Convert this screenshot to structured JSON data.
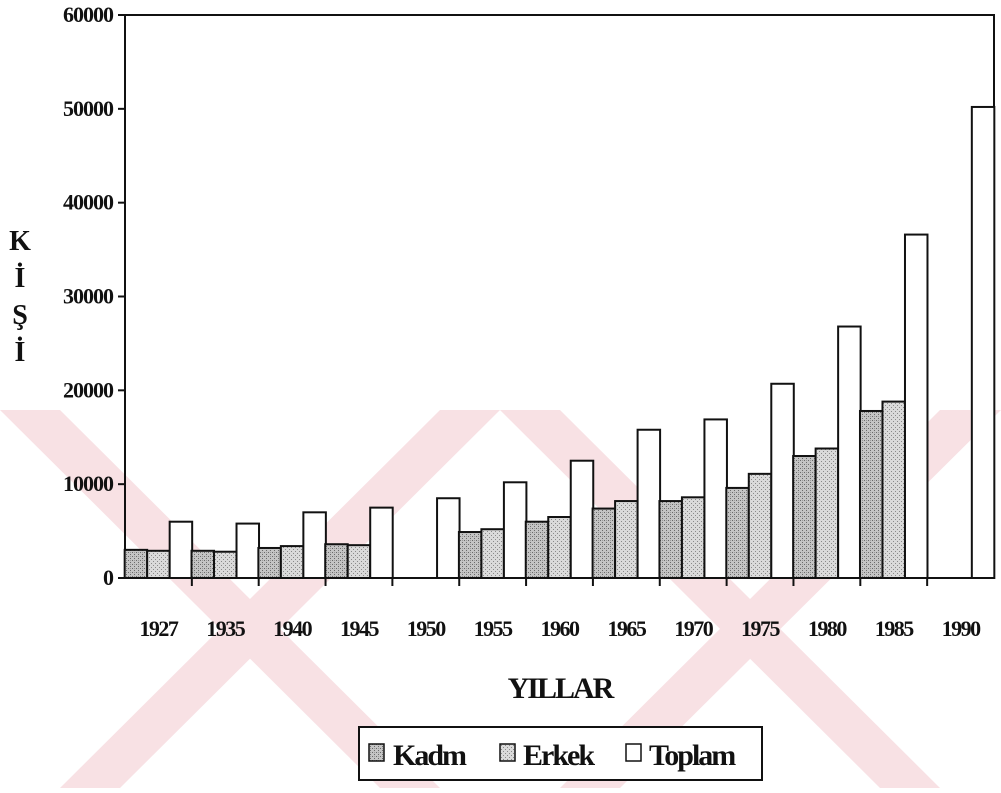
{
  "chart_data": {
    "type": "bar",
    "title": "",
    "xlabel": "YILLAR",
    "ylabel": "KİŞİ",
    "ylim": [
      0,
      60000
    ],
    "yticks": [
      "0",
      "10000",
      "20000",
      "30000",
      "40000",
      "50000",
      "60000"
    ],
    "categories": [
      "1927",
      "1935",
      "1940",
      "1945",
      "1950",
      "1955",
      "1960",
      "1965",
      "1970",
      "1975",
      "1980",
      "1985",
      "1990"
    ],
    "series": [
      {
        "name": "Kadın",
        "color": "#b8b8b8",
        "values": [
          3000,
          2900,
          3200,
          3600,
          null,
          4900,
          6000,
          7400,
          8200,
          9600,
          13000,
          17800,
          null
        ]
      },
      {
        "name": "Erkek",
        "color": "#cfcfcf",
        "values": [
          2900,
          2800,
          3400,
          3500,
          null,
          5200,
          6500,
          8200,
          8600,
          11100,
          13800,
          18800,
          null
        ]
      },
      {
        "name": "Toplam",
        "color": "#ffffff",
        "values": [
          6000,
          5800,
          7000,
          7500,
          8500,
          10200,
          12500,
          15800,
          16900,
          20700,
          26800,
          36600,
          50200
        ]
      }
    ],
    "legend": {
      "position": "bottom",
      "labels": [
        "Kadm",
        "Erkek",
        "Toplam"
      ]
    },
    "grid": false
  }
}
